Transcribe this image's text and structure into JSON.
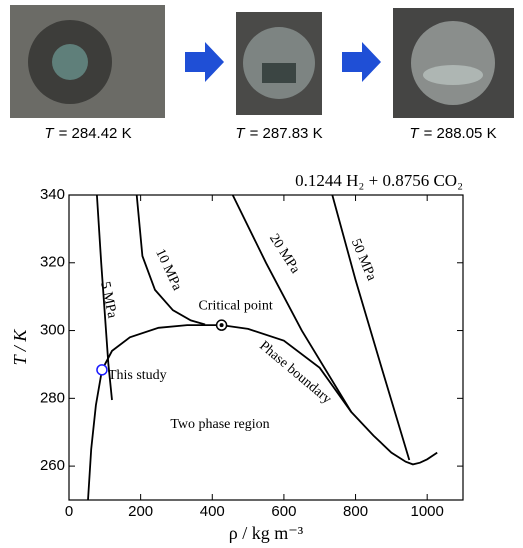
{
  "photos": [
    {
      "symbol": "T",
      "value": "= 284.42 K"
    },
    {
      "symbol": "T",
      "value": "= 287.83 K"
    },
    {
      "symbol": "T",
      "value": "= 288.05 K"
    }
  ],
  "chart_data": {
    "type": "line",
    "title": "0.1244 H₂ + 0.8756 CO₂",
    "x_label": "ρ / kg m⁻³",
    "y_label": "T / K",
    "xlim": [
      0,
      1100
    ],
    "ylim": [
      250,
      340
    ],
    "xticks": [
      0,
      200,
      400,
      600,
      800,
      1000
    ],
    "yticks": [
      260,
      280,
      300,
      320,
      340
    ],
    "series": [
      {
        "name": "Phase boundary",
        "color": "#000000",
        "x": [
          53,
          62,
          75,
          92,
          120,
          170,
          250,
          330,
          426,
          500,
          600,
          700,
          788,
          850,
          900,
          940,
          960,
          980,
          1000,
          1028
        ],
        "values": [
          250,
          265,
          278,
          288.4,
          294,
          298,
          300.8,
          301.6,
          301.6,
          300.5,
          297,
          289,
          276,
          269,
          264,
          261.3,
          260.5,
          261,
          262,
          264
        ]
      },
      {
        "name": "5 MPa",
        "color": "#000000",
        "x": [
          78,
          90,
          100,
          110,
          120
        ],
        "values": [
          340,
          320,
          305,
          290,
          279.5
        ]
      },
      {
        "name": "10 MPa",
        "color": "#000000",
        "x": [
          189,
          205,
          240,
          290,
          340,
          380
        ],
        "values": [
          340,
          322,
          312,
          306,
          303,
          301.8
        ]
      },
      {
        "name": "20 MPa",
        "color": "#000000",
        "x": [
          457,
          550,
          650,
          788
        ],
        "values": [
          340,
          320,
          300,
          276
        ]
      },
      {
        "name": "50 MPa",
        "color": "#000000",
        "x": [
          735,
          800,
          870,
          950
        ],
        "values": [
          340,
          315,
          290,
          261.8
        ]
      }
    ],
    "points": [
      {
        "name": "Critical point",
        "x": 426,
        "y": 301.6,
        "color": "#000000"
      },
      {
        "name": "This study",
        "x": 92,
        "y": 288.4,
        "color": "#1a1aff"
      }
    ],
    "annotations": [
      "Two phase region"
    ]
  }
}
